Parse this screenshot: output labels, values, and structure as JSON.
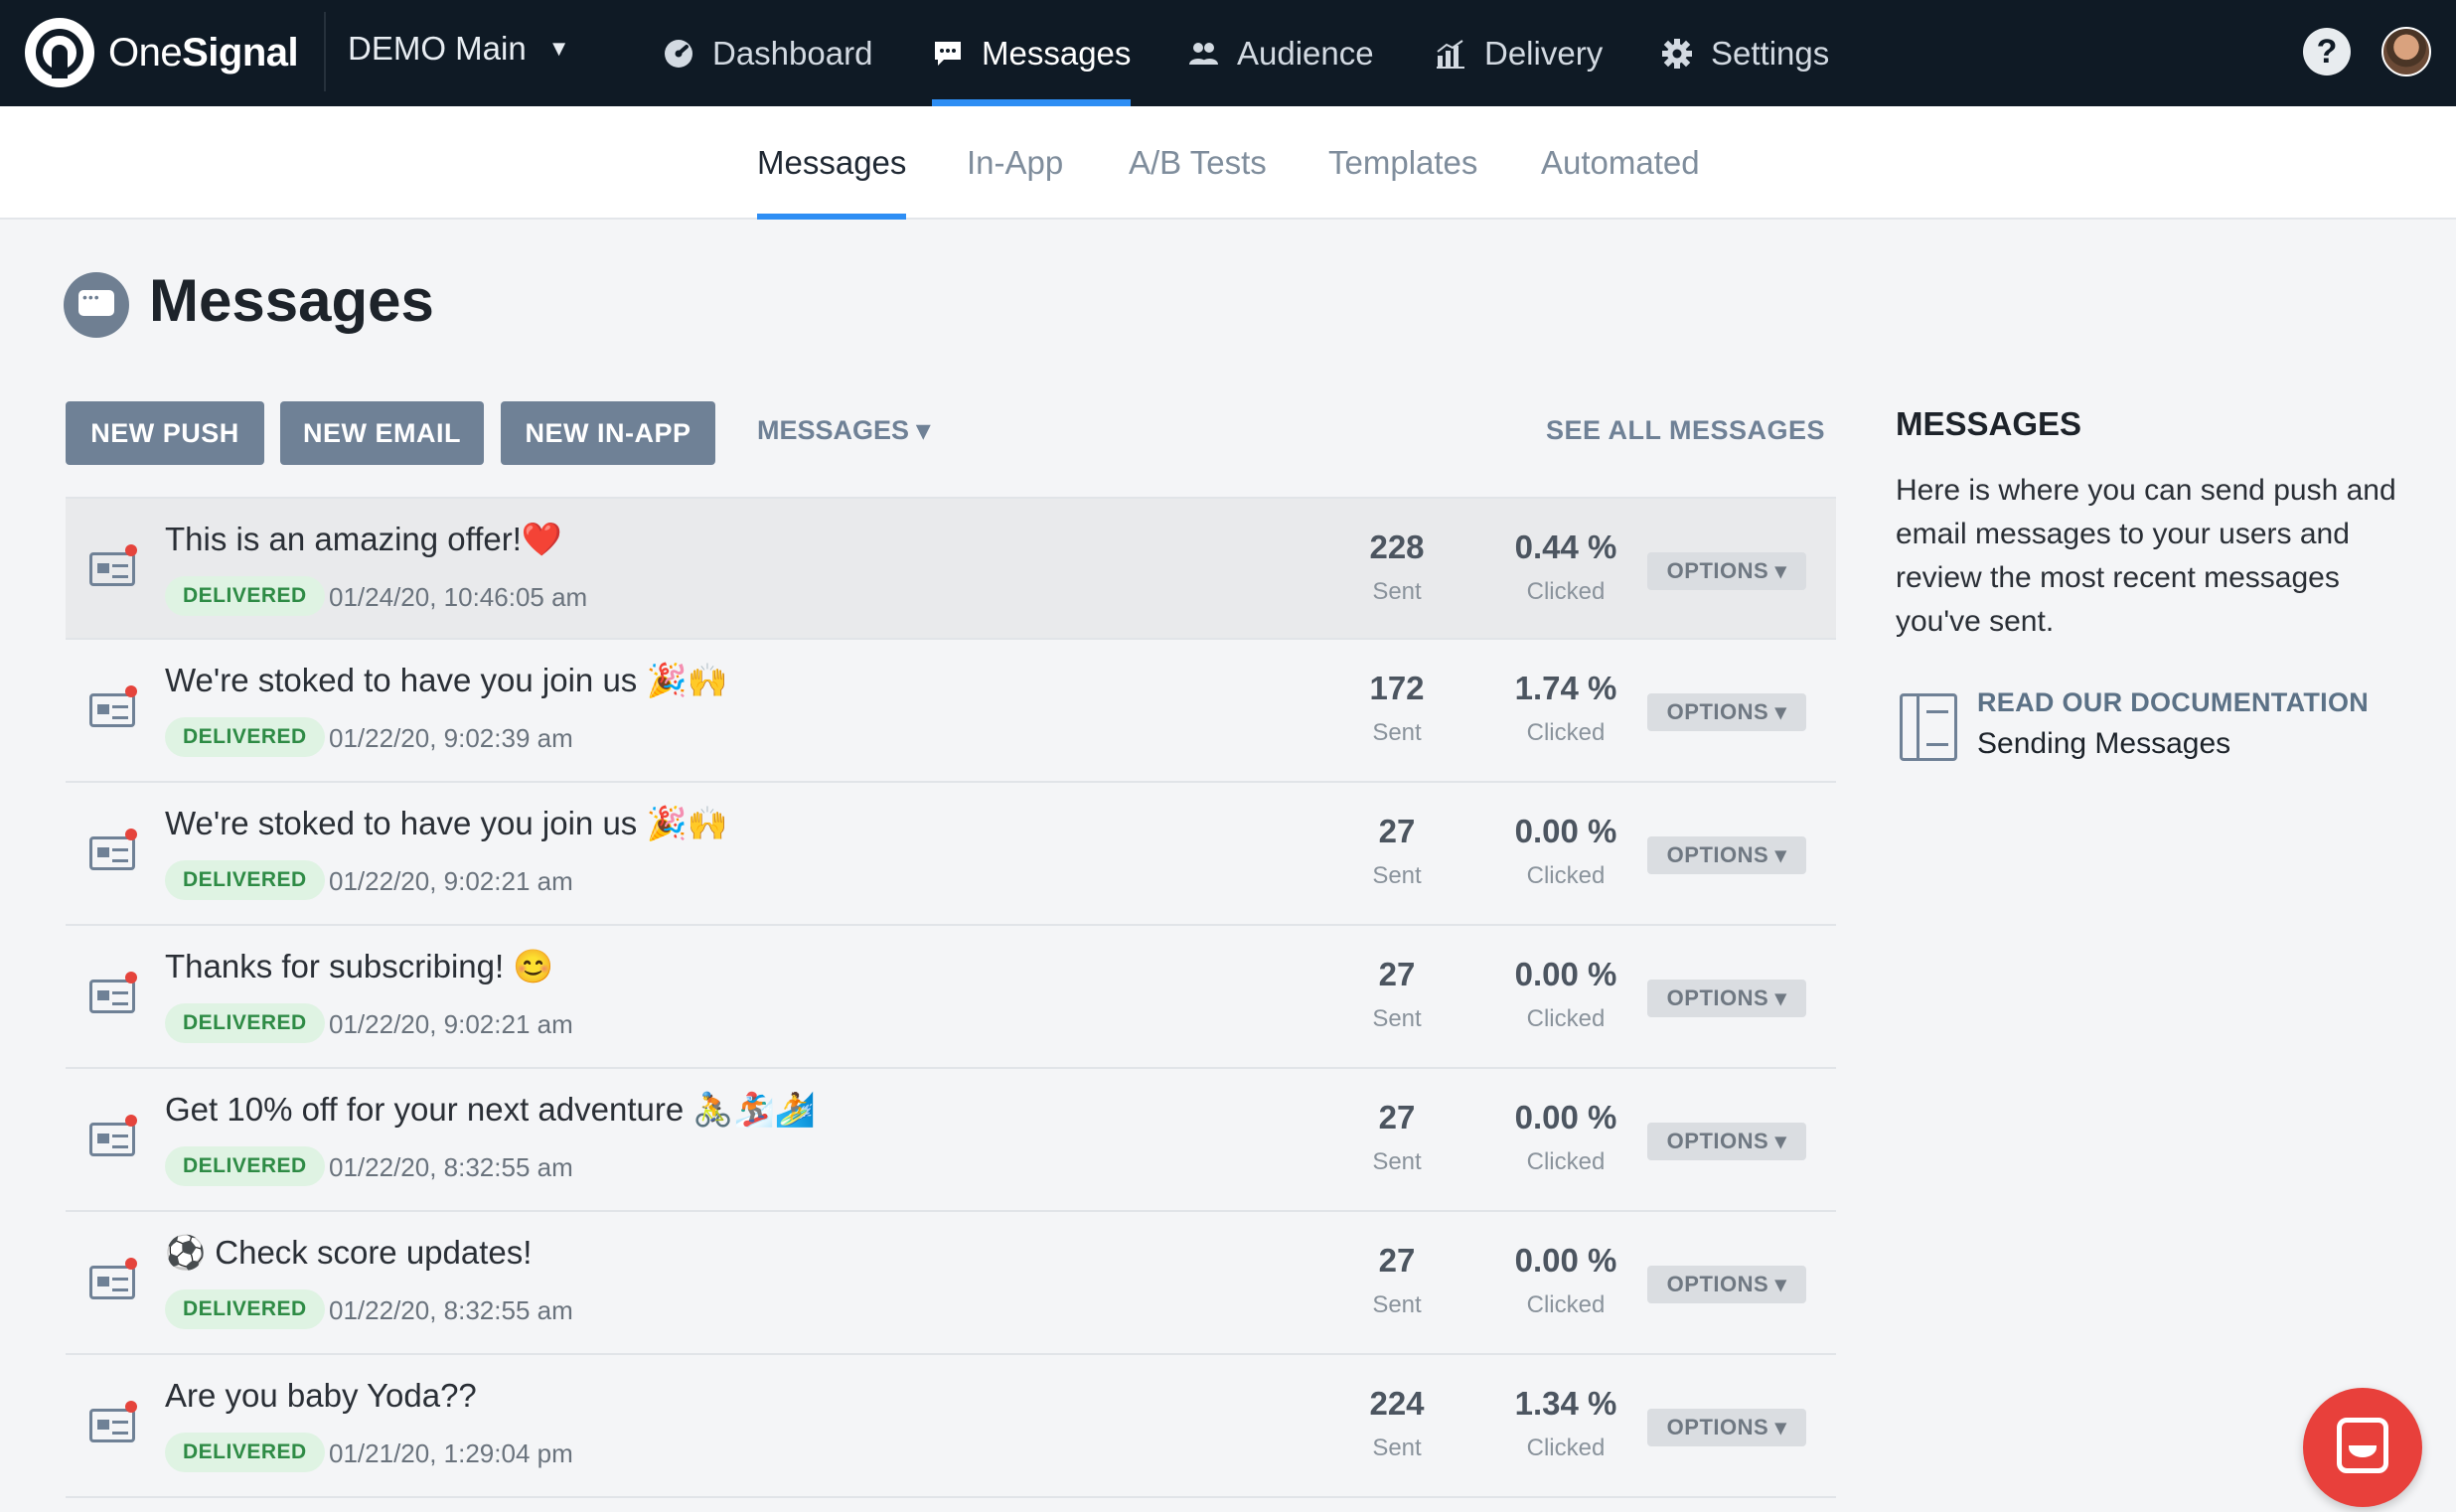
{
  "brand": {
    "name_light": "One",
    "name_bold": "Signal"
  },
  "app_switcher": {
    "label": "DEMO Main",
    "caret": "▼"
  },
  "nav": {
    "items": [
      {
        "label": "Dashboard",
        "icon": "dashboard-icon"
      },
      {
        "label": "Messages",
        "icon": "chat-bubble-icon",
        "active": true
      },
      {
        "label": "Audience",
        "icon": "people-icon"
      },
      {
        "label": "Delivery",
        "icon": "bar-chart-icon"
      },
      {
        "label": "Settings",
        "icon": "gear-icon"
      }
    ],
    "help": "?"
  },
  "subnav": {
    "tabs": [
      {
        "label": "Messages",
        "active": true
      },
      {
        "label": "In-App"
      },
      {
        "label": "A/B Tests"
      },
      {
        "label": "Templates"
      },
      {
        "label": "Automated"
      }
    ]
  },
  "page": {
    "title": "Messages"
  },
  "actions": {
    "new_push": "NEW PUSH",
    "new_email": "NEW EMAIL",
    "new_inapp": "NEW IN-APP",
    "filter": "MESSAGES ▾",
    "see_all": "SEE ALL MESSAGES"
  },
  "messages": [
    {
      "title": "This is an amazing offer!❤️",
      "status": "DELIVERED",
      "date": "01/24/20, 10:46:05 am",
      "sent": "228",
      "sent_label": "Sent",
      "clicked": "0.44 %",
      "clicked_label": "Clicked",
      "options": "OPTIONS ▾"
    },
    {
      "title": "We're stoked to have you join us 🎉🙌",
      "status": "DELIVERED",
      "date": "01/22/20, 9:02:39 am",
      "sent": "172",
      "sent_label": "Sent",
      "clicked": "1.74 %",
      "clicked_label": "Clicked",
      "options": "OPTIONS ▾"
    },
    {
      "title": "We're stoked to have you join us 🎉🙌",
      "status": "DELIVERED",
      "date": "01/22/20, 9:02:21 am",
      "sent": "27",
      "sent_label": "Sent",
      "clicked": "0.00 %",
      "clicked_label": "Clicked",
      "options": "OPTIONS ▾"
    },
    {
      "title": "Thanks for subscribing! 😊",
      "status": "DELIVERED",
      "date": "01/22/20, 9:02:21 am",
      "sent": "27",
      "sent_label": "Sent",
      "clicked": "0.00 %",
      "clicked_label": "Clicked",
      "options": "OPTIONS ▾"
    },
    {
      "title": "Get 10% off for your next adventure 🚴🏂🏄",
      "status": "DELIVERED",
      "date": "01/22/20, 8:32:55 am",
      "sent": "27",
      "sent_label": "Sent",
      "clicked": "0.00 %",
      "clicked_label": "Clicked",
      "options": "OPTIONS ▾"
    },
    {
      "title": "⚽ Check score updates!",
      "status": "DELIVERED",
      "date": "01/22/20, 8:32:55 am",
      "sent": "27",
      "sent_label": "Sent",
      "clicked": "0.00 %",
      "clicked_label": "Clicked",
      "options": "OPTIONS ▾"
    },
    {
      "title": "Are you baby Yoda??",
      "status": "DELIVERED",
      "date": "01/21/20, 1:29:04 pm",
      "sent": "224",
      "sent_label": "Sent",
      "clicked": "1.34 %",
      "clicked_label": "Clicked",
      "options": "OPTIONS ▾"
    }
  ],
  "info_panel": {
    "title": "MESSAGES",
    "body": "Here is where you can send push and email messages to your users and review the most recent messages you've sent.",
    "doc_link": "READ OUR DOCUMENTATION",
    "doc_subtitle": "Sending Messages"
  },
  "colors": {
    "topbar": "#0f1a25",
    "accent": "#2e8ef4",
    "button": "#6f8196",
    "delivered": "#2e8b45",
    "chat": "#e8403b"
  }
}
